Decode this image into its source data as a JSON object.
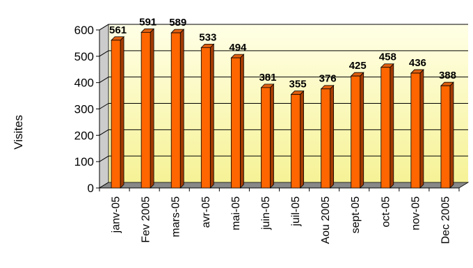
{
  "chart_data": {
    "type": "bar",
    "categories": [
      "janv-05",
      "Fev 2005",
      "mars-05",
      "avr-05",
      "mai-05",
      "juin-05",
      "juil-05",
      "Aou 2005",
      "sept-05",
      "oct-05",
      "nov-05",
      "Dec 2005"
    ],
    "values": [
      561,
      591,
      589,
      533,
      494,
      381,
      355,
      376,
      425,
      458,
      436,
      388
    ],
    "ylabel": "Visites",
    "xlabel": "",
    "title": "",
    "ylim": [
      0,
      600
    ],
    "yticks": [
      "0",
      "100",
      "200",
      "300",
      "400",
      "500",
      "600"
    ],
    "grid": true,
    "legend": "none",
    "colors": {
      "bar_front": "#ff6600",
      "bar_side": "#a33a00",
      "bar_top": "#e06010",
      "plot_top": "#ffffe6",
      "plot_bottom": "#f6f296",
      "floor": "#888888",
      "side_wall": "#cccccc",
      "gridline": "#000000"
    }
  }
}
